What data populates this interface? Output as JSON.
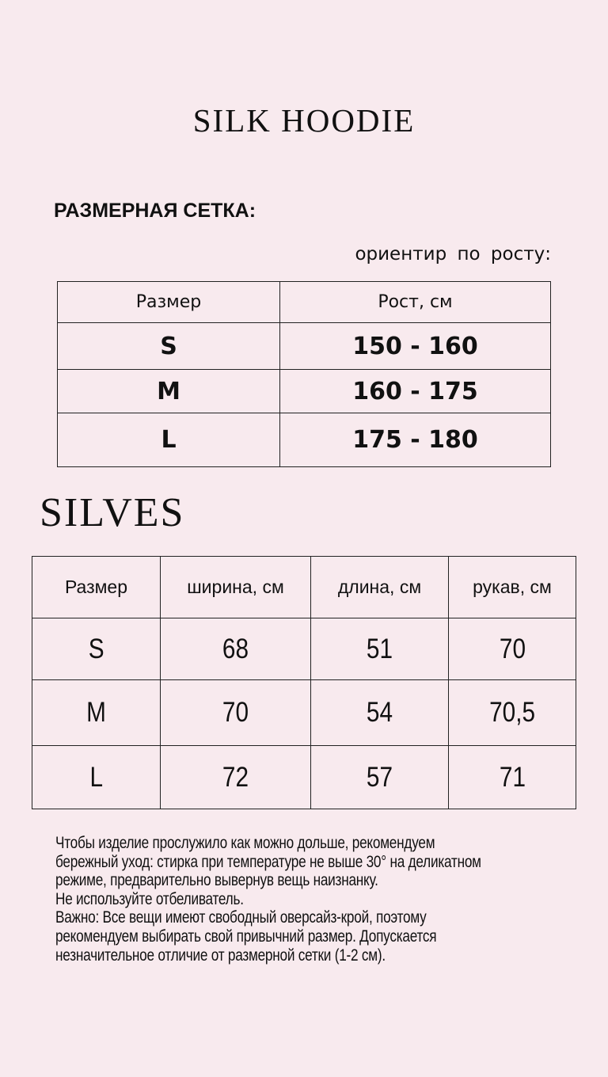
{
  "title": "SILK HOODIE",
  "size_chart_heading": "РАЗМЕРНАЯ СЕТКА:",
  "height_guide_label": "ориентир по росту:",
  "height_table": {
    "headers": [
      "Размер",
      "Рост, см"
    ],
    "rows": [
      [
        "S",
        "150 - 160"
      ],
      [
        "M",
        "160 - 175"
      ],
      [
        "L",
        "175 - 180"
      ]
    ]
  },
  "section_title": "SILVES",
  "measure_table": {
    "headers": [
      "Размер",
      "ширина, см",
      "длина, см",
      "рукав, см"
    ],
    "rows": [
      [
        "S",
        "68",
        "51",
        "70"
      ],
      [
        "M",
        "70",
        "54",
        "70,5"
      ],
      [
        "L",
        "72",
        "57",
        "71"
      ]
    ]
  },
  "notes": [
    "Чтобы изделие прослужило как можно дольше, рекомендуем",
    "бережный уход: стирка при температуре не выше 30° на деликатном",
    "режиме, предварительно вывернув вещь наизнанку.",
    "Не используйте отбеливатель.",
    "Важно: Все вещи имеют свободный оверсайз-крой, поэтому",
    "рекомендуем выбирать свой привычний размер. Допускается",
    "незначительное отличие от размерной сетки (1-2 см)."
  ],
  "colors": {
    "background": "#f8eaee",
    "text": "#111111"
  }
}
